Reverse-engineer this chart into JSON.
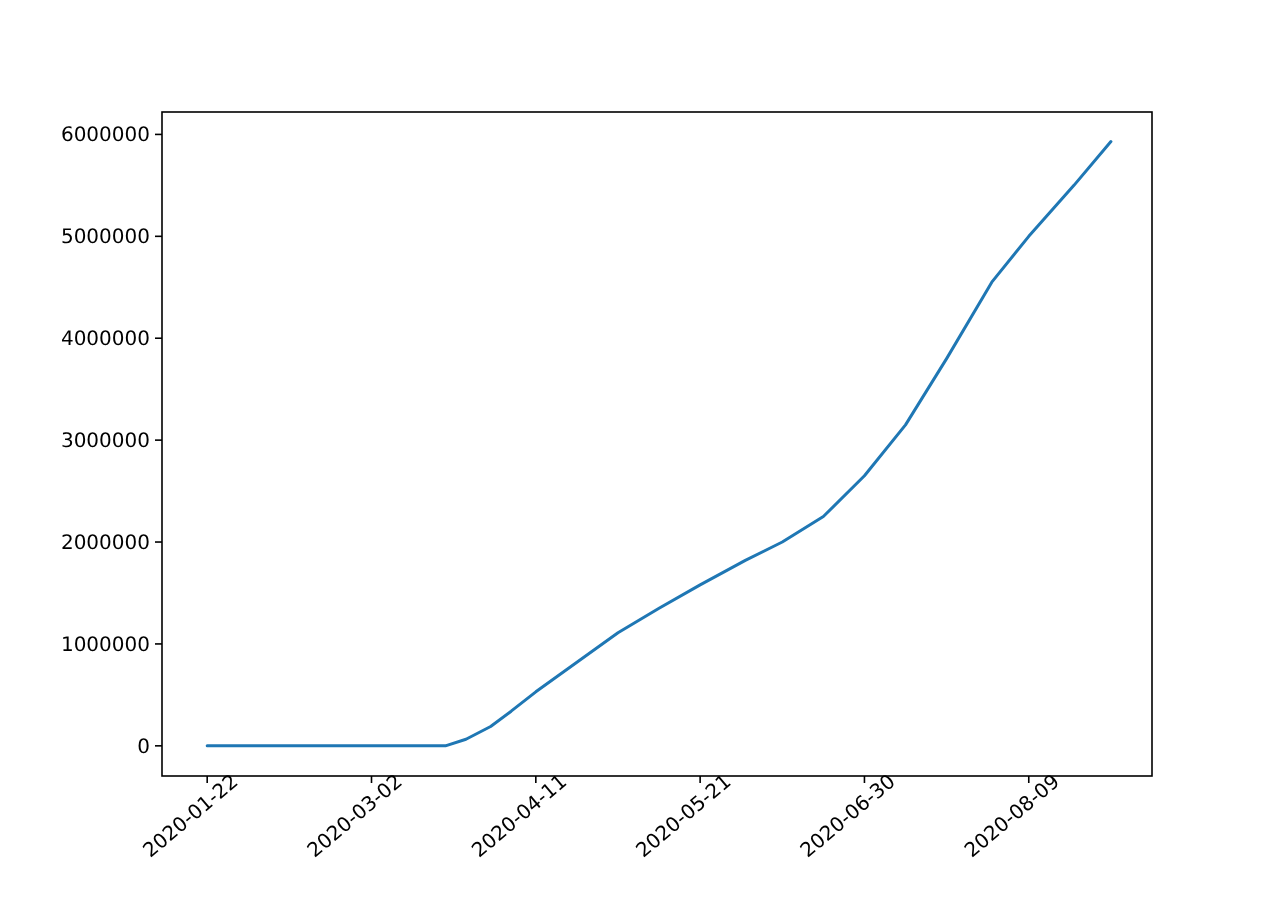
{
  "chart_data": {
    "type": "line",
    "x": [
      "2020-01-22",
      "2020-02-10",
      "2020-03-01",
      "2020-03-10",
      "2020-03-15",
      "2020-03-20",
      "2020-03-25",
      "2020-03-31",
      "2020-04-05",
      "2020-04-11",
      "2020-04-21",
      "2020-05-01",
      "2020-05-11",
      "2020-05-21",
      "2020-06-01",
      "2020-06-10",
      "2020-06-20",
      "2020-06-30",
      "2020-07-10",
      "2020-07-20",
      "2020-07-31",
      "2020-08-09",
      "2020-08-20",
      "2020-08-29"
    ],
    "series": [
      {
        "color": "#1f77b4",
        "values": [
          0,
          0,
          0,
          0,
          0,
          0,
          65000,
          190000,
          340000,
          530000,
          820000,
          1110000,
          1350000,
          1580000,
          1820000,
          2000000,
          2250000,
          2650000,
          3150000,
          3800000,
          4550000,
          5000000,
          5500000,
          5930000
        ]
      }
    ],
    "xlim": [
      "2020-01-11",
      "2020-09-08"
    ],
    "xticks": [
      "2020-01-22",
      "2020-03-02",
      "2020-04-11",
      "2020-05-21",
      "2020-06-30",
      "2020-08-09"
    ],
    "ylim": [
      -296000,
      6220000
    ],
    "yticks": [
      0,
      1000000,
      2000000,
      3000000,
      4000000,
      5000000,
      6000000
    ],
    "grid": false,
    "line_style": "solid",
    "marker": "none"
  }
}
